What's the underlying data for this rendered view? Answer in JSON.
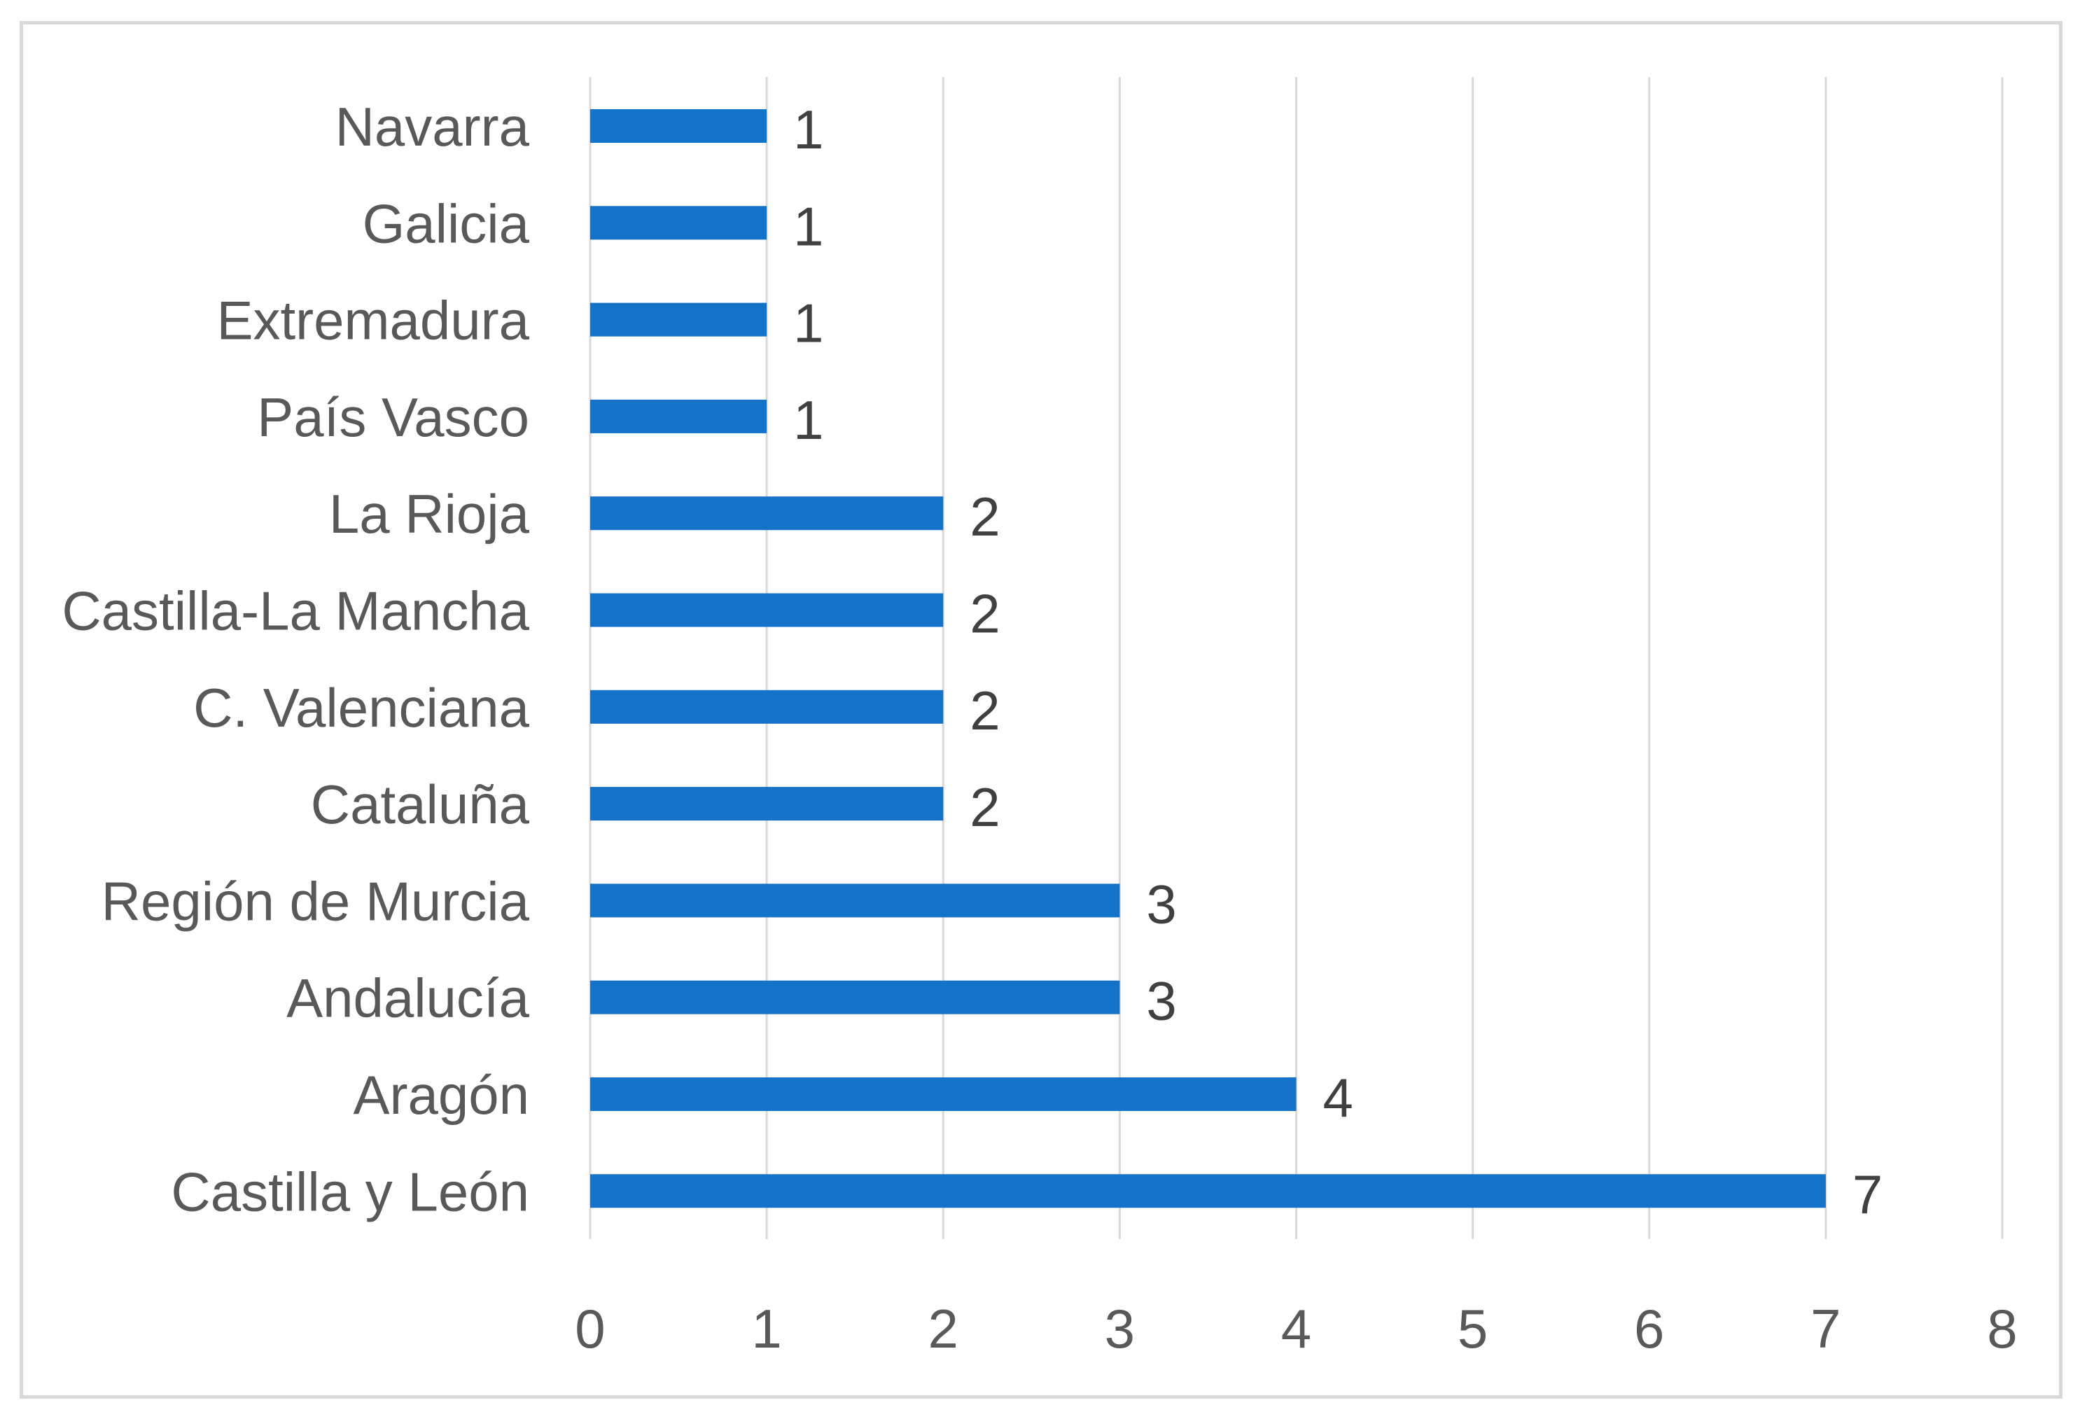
{
  "chart_data": {
    "type": "bar",
    "orientation": "horizontal",
    "categories": [
      "Navarra",
      "Galicia",
      "Extremadura",
      "País Vasco",
      "La Rioja",
      "Castilla-La Mancha",
      "C. Valenciana",
      "Cataluña",
      "Región de Murcia",
      "Andalucía",
      "Aragón",
      "Castilla y León"
    ],
    "values": [
      1,
      1,
      1,
      1,
      2,
      2,
      2,
      2,
      3,
      3,
      4,
      7
    ],
    "title": "",
    "xlabel": "",
    "ylabel": "",
    "xlim": [
      0,
      8
    ],
    "xticks": [
      0,
      1,
      2,
      3,
      4,
      5,
      6,
      7,
      8
    ],
    "grid": true,
    "legend": false,
    "data_labels": true,
    "bar_color": "#1472c8",
    "grid_color": "#d9d9d9",
    "text_color": "#595959"
  }
}
